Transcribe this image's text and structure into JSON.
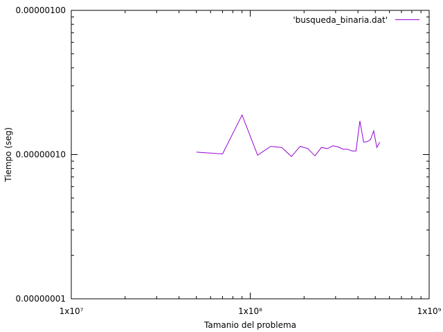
{
  "chart_data": {
    "type": "line",
    "xlabel": "Tamanio del problema",
    "ylabel": "Tiempo (seg)",
    "x_scale": "log",
    "y_scale": "log",
    "xlim": [
      10000000,
      1000000000
    ],
    "ylim": [
      1e-08,
      1e-06
    ],
    "grid": false,
    "legend_position": "top-right",
    "x_ticks": [
      {
        "value": 10000000,
        "label": "1x10⁷"
      },
      {
        "value": 100000000,
        "label": "1x10⁸"
      },
      {
        "value": 1000000000,
        "label": "1x10⁹"
      }
    ],
    "y_ticks": [
      {
        "value": 1e-08,
        "label": "0.00000001"
      },
      {
        "value": 1e-07,
        "label": "0.00000010"
      },
      {
        "value": 1e-06,
        "label": "0.00000100"
      }
    ],
    "series": [
      {
        "name": "'busqueda_binaria.dat'",
        "color": "#9400d3",
        "x": [
          50000000,
          70000000,
          90000000,
          110000000,
          130000000,
          150000000,
          170000000,
          190000000,
          210000000,
          230000000,
          250000000,
          270000000,
          290000000,
          310000000,
          330000000,
          350000000,
          370000000,
          390000000,
          410000000,
          430000000,
          450000000,
          470000000,
          490000000,
          510000000,
          530000000
        ],
        "y": [
          1.04e-07,
          1.01e-07,
          1.88e-07,
          9.9e-08,
          1.14e-07,
          1.12e-07,
          9.7e-08,
          1.14e-07,
          1.1e-07,
          9.8e-08,
          1.12e-07,
          1.1e-07,
          1.15e-07,
          1.13e-07,
          1.09e-07,
          1.09e-07,
          1.06e-07,
          1.06e-07,
          1.71e-07,
          1.22e-07,
          1.23e-07,
          1.27e-07,
          1.46e-07,
          1.12e-07,
          1.22e-07
        ]
      }
    ]
  }
}
